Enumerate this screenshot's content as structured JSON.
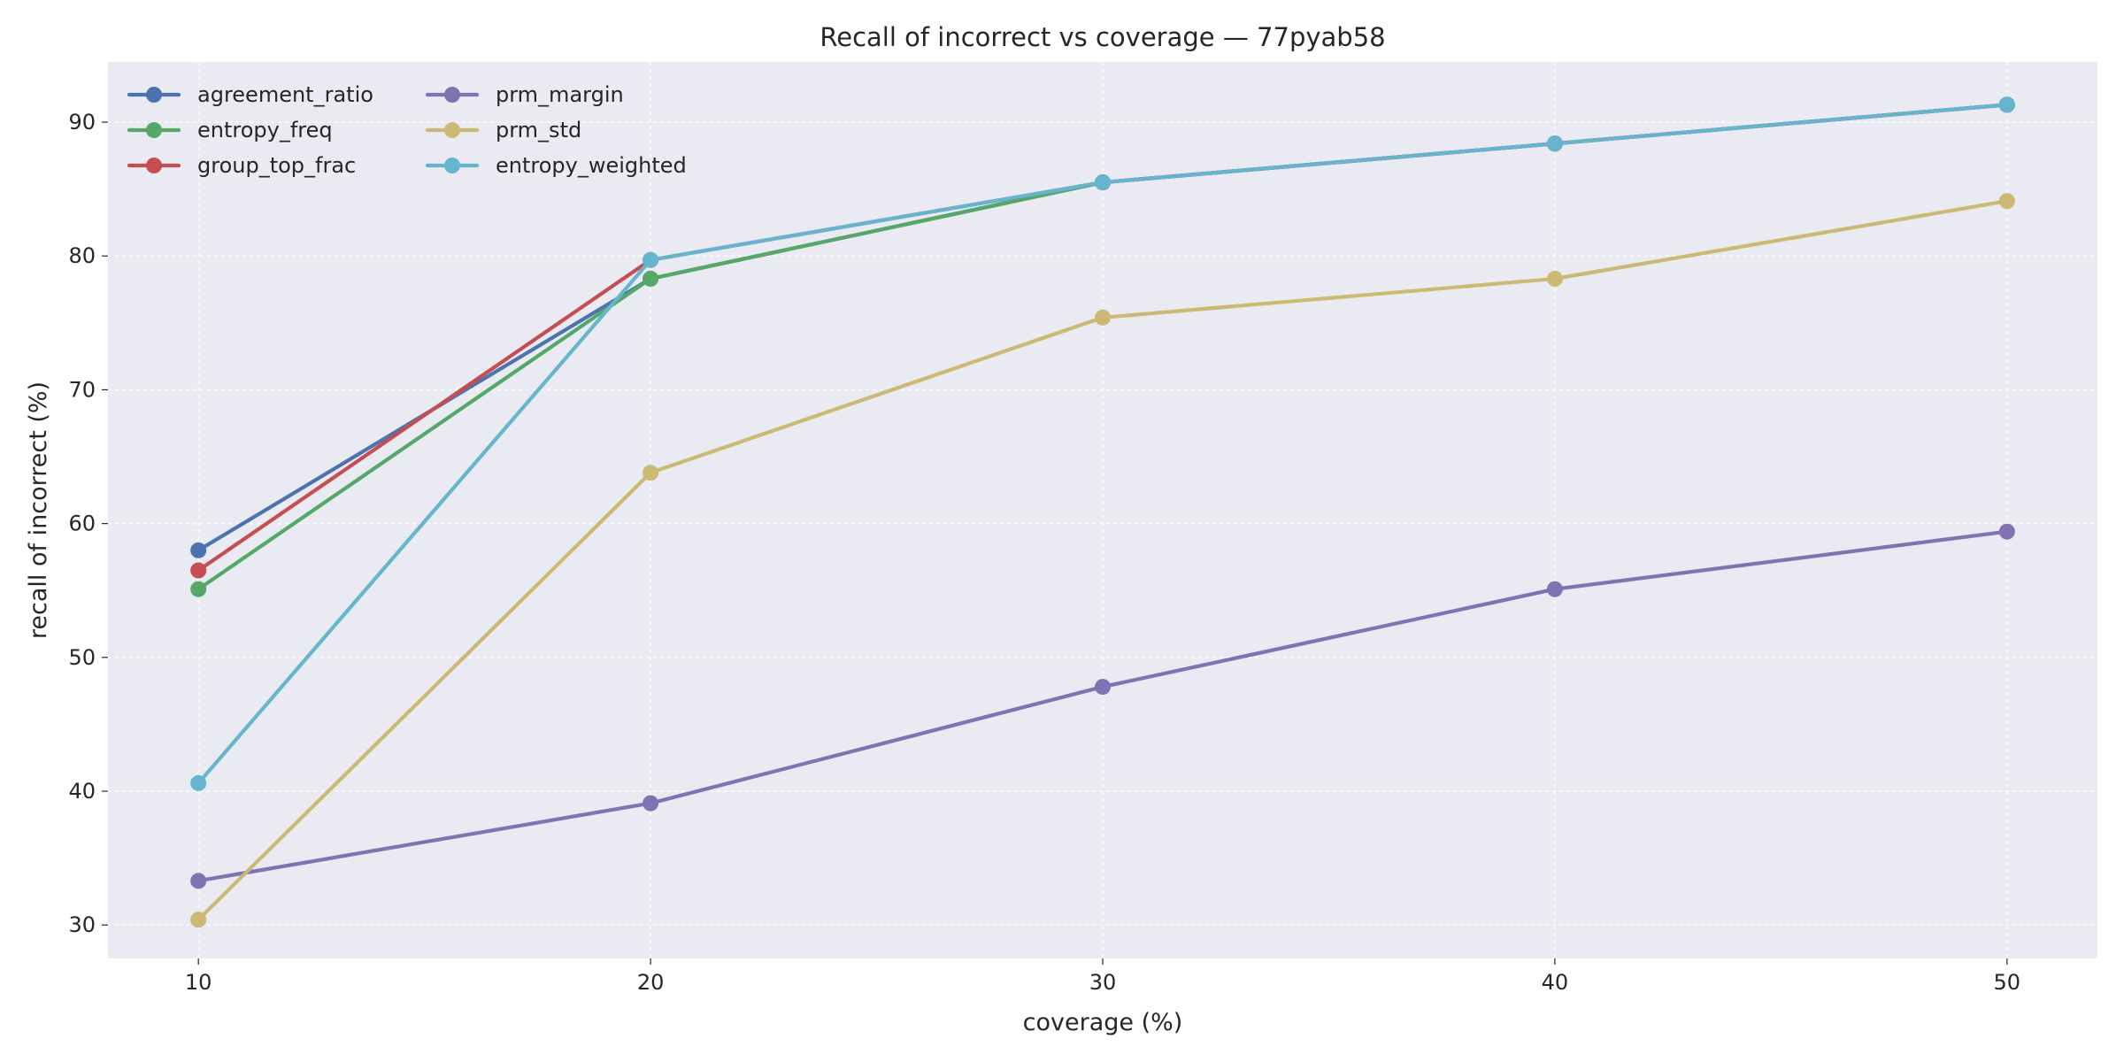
{
  "chart_data": {
    "type": "line",
    "title": "Recall of incorrect vs coverage — 77pyab58",
    "xlabel": "coverage (%)",
    "ylabel": "recall of incorrect (%)",
    "x": [
      10,
      20,
      30,
      40,
      50
    ],
    "x_ticks": [
      "10",
      "20",
      "30",
      "40",
      "50"
    ],
    "y_ticks": [
      "30",
      "40",
      "50",
      "60",
      "70",
      "80",
      "90"
    ],
    "xlim": [
      8,
      52
    ],
    "ylim": [
      27.5,
      94.5
    ],
    "grid": true,
    "legend_position": "top-left",
    "background_color": "#eaeaf2",
    "series": [
      {
        "name": "agreement_ratio",
        "color": "#4c72b0",
        "values": [
          58.0,
          78.3,
          85.5,
          88.4,
          91.3
        ]
      },
      {
        "name": "entropy_freq",
        "color": "#55a868",
        "values": [
          55.1,
          78.3,
          85.5,
          88.4,
          91.3
        ]
      },
      {
        "name": "group_top_frac",
        "color": "#c44e52",
        "values": [
          56.5,
          79.7,
          85.5,
          88.4,
          91.3
        ]
      },
      {
        "name": "prm_margin",
        "color": "#8172b3",
        "values": [
          33.3,
          39.1,
          47.8,
          55.1,
          59.4
        ]
      },
      {
        "name": "prm_std",
        "color": "#ccb974",
        "values": [
          30.4,
          63.8,
          75.4,
          78.3,
          84.1
        ]
      },
      {
        "name": "entropy_weighted",
        "color": "#64b5cd",
        "values": [
          40.6,
          79.7,
          85.5,
          88.4,
          91.3
        ]
      }
    ]
  }
}
